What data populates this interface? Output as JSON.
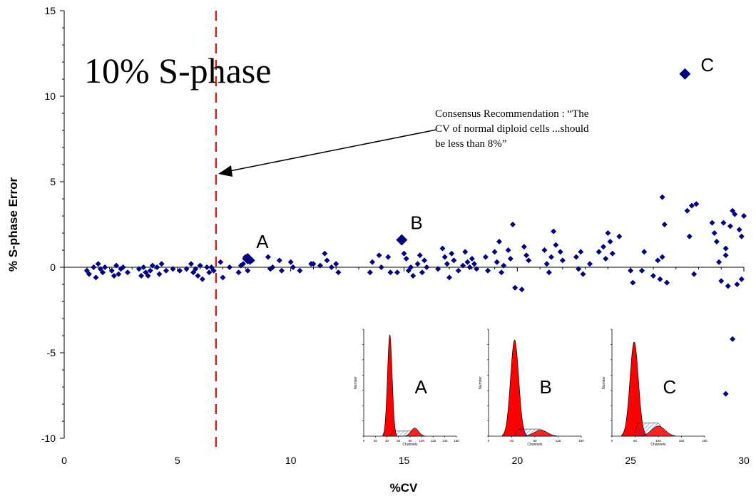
{
  "chart_data": {
    "type": "scatter",
    "title": "",
    "xlabel": "%CV",
    "ylabel": "% S-phase Error",
    "xlim": [
      0,
      30
    ],
    "ylim": [
      -10,
      15
    ],
    "x_ticks": [
      "0",
      "5",
      "10",
      "15",
      "20",
      "25",
      "30"
    ],
    "y_ticks": [
      "15",
      "10",
      "5",
      "0",
      "-5",
      "-10"
    ],
    "grid": false,
    "marker_color": "#000080",
    "threshold_color": "#e02020",
    "threshold_x": 6.7,
    "points": [
      {
        "x": 1.0,
        "y": -0.2
      },
      {
        "x": 1.1,
        "y": -0.4
      },
      {
        "x": 1.3,
        "y": 0.0
      },
      {
        "x": 1.4,
        "y": -0.6
      },
      {
        "x": 1.5,
        "y": 0.2
      },
      {
        "x": 1.6,
        "y": -0.1
      },
      {
        "x": 1.7,
        "y": -0.3
      },
      {
        "x": 1.8,
        "y": 0.0
      },
      {
        "x": 2.1,
        "y": -0.2
      },
      {
        "x": 2.2,
        "y": -0.5
      },
      {
        "x": 2.3,
        "y": 0.1
      },
      {
        "x": 2.4,
        "y": -0.4
      },
      {
        "x": 2.5,
        "y": -0.1
      },
      {
        "x": 2.6,
        "y": 0.0
      },
      {
        "x": 2.8,
        "y": -0.3
      },
      {
        "x": 3.3,
        "y": -0.1
      },
      {
        "x": 3.4,
        "y": -0.5
      },
      {
        "x": 3.5,
        "y": 0.0
      },
      {
        "x": 3.6,
        "y": -0.3
      },
      {
        "x": 3.7,
        "y": -0.5
      },
      {
        "x": 3.8,
        "y": -0.2
      },
      {
        "x": 3.9,
        "y": 0.1
      },
      {
        "x": 4.1,
        "y": 0.0
      },
      {
        "x": 4.2,
        "y": -0.4
      },
      {
        "x": 4.3,
        "y": 0.2
      },
      {
        "x": 4.5,
        "y": -0.2
      },
      {
        "x": 4.8,
        "y": -0.1
      },
      {
        "x": 5.1,
        "y": -0.2
      },
      {
        "x": 5.4,
        "y": -0.1
      },
      {
        "x": 5.6,
        "y": 0.2
      },
      {
        "x": 5.7,
        "y": -0.3
      },
      {
        "x": 5.8,
        "y": -0.1
      },
      {
        "x": 5.9,
        "y": -0.5
      },
      {
        "x": 6.0,
        "y": 0.1
      },
      {
        "x": 6.1,
        "y": -0.7
      },
      {
        "x": 6.3,
        "y": 0.0
      },
      {
        "x": 6.4,
        "y": -0.3
      },
      {
        "x": 6.5,
        "y": 0.0
      },
      {
        "x": 6.6,
        "y": -0.2
      },
      {
        "x": 6.9,
        "y": 0.3
      },
      {
        "x": 7.0,
        "y": -0.6
      },
      {
        "x": 7.3,
        "y": 0.0
      },
      {
        "x": 7.7,
        "y": -0.3
      },
      {
        "x": 7.8,
        "y": 0.1
      },
      {
        "x": 7.9,
        "y": 0.2
      },
      {
        "x": 8.0,
        "y": 0.6
      },
      {
        "x": 8.1,
        "y": -0.2
      },
      {
        "x": 8.2,
        "y": 0.3
      },
      {
        "x": 8.3,
        "y": 0.4
      },
      {
        "x": 9.0,
        "y": 0.6
      },
      {
        "x": 9.1,
        "y": -0.1
      },
      {
        "x": 9.2,
        "y": 0.0
      },
      {
        "x": 9.5,
        "y": 0.4
      },
      {
        "x": 9.6,
        "y": -0.2
      },
      {
        "x": 10.0,
        "y": 0.3
      },
      {
        "x": 10.1,
        "y": 0.0
      },
      {
        "x": 10.4,
        "y": -0.2
      },
      {
        "x": 10.9,
        "y": 0.2
      },
      {
        "x": 11.0,
        "y": 0.2
      },
      {
        "x": 11.3,
        "y": 0.1
      },
      {
        "x": 11.5,
        "y": 0.8
      },
      {
        "x": 11.6,
        "y": 0.4
      },
      {
        "x": 11.8,
        "y": 0.0
      },
      {
        "x": 12.0,
        "y": 0.2
      },
      {
        "x": 12.1,
        "y": -0.3
      },
      {
        "x": 13.5,
        "y": -0.3
      },
      {
        "x": 13.6,
        "y": 0.3
      },
      {
        "x": 13.9,
        "y": 0.7
      },
      {
        "x": 14.0,
        "y": 0.0
      },
      {
        "x": 14.3,
        "y": 0.6
      },
      {
        "x": 14.4,
        "y": -0.3
      },
      {
        "x": 14.7,
        "y": -0.3
      },
      {
        "x": 15.0,
        "y": 0.8
      },
      {
        "x": 15.1,
        "y": 0.5
      },
      {
        "x": 15.2,
        "y": -0.2
      },
      {
        "x": 15.3,
        "y": 0.0
      },
      {
        "x": 15.4,
        "y": -0.5
      },
      {
        "x": 15.6,
        "y": 0.2
      },
      {
        "x": 15.7,
        "y": 0.7
      },
      {
        "x": 15.8,
        "y": -0.3
      },
      {
        "x": 15.9,
        "y": 0.4
      },
      {
        "x": 16.0,
        "y": 0.0
      },
      {
        "x": 16.5,
        "y": -0.1
      },
      {
        "x": 16.7,
        "y": 1.1
      },
      {
        "x": 16.8,
        "y": 0.6
      },
      {
        "x": 16.9,
        "y": 0.2
      },
      {
        "x": 17.0,
        "y": -0.6
      },
      {
        "x": 17.1,
        "y": 0.8
      },
      {
        "x": 17.2,
        "y": 0.4
      },
      {
        "x": 17.4,
        "y": -0.2
      },
      {
        "x": 17.6,
        "y": 0.1
      },
      {
        "x": 17.7,
        "y": 0.9
      },
      {
        "x": 17.8,
        "y": 0.3
      },
      {
        "x": 17.9,
        "y": 0.0
      },
      {
        "x": 18.0,
        "y": 0.5
      },
      {
        "x": 18.1,
        "y": 0.2
      },
      {
        "x": 18.2,
        "y": -0.1
      },
      {
        "x": 18.6,
        "y": 0.6
      },
      {
        "x": 18.7,
        "y": -0.2
      },
      {
        "x": 19.0,
        "y": 0.9
      },
      {
        "x": 19.1,
        "y": 0.3
      },
      {
        "x": 19.2,
        "y": 1.5
      },
      {
        "x": 19.3,
        "y": -0.3
      },
      {
        "x": 19.4,
        "y": 0.1
      },
      {
        "x": 19.6,
        "y": 1.0
      },
      {
        "x": 19.7,
        "y": 0.5
      },
      {
        "x": 19.8,
        "y": 2.5
      },
      {
        "x": 19.9,
        "y": -1.2
      },
      {
        "x": 20.2,
        "y": -1.3
      },
      {
        "x": 20.3,
        "y": 1.2
      },
      {
        "x": 20.4,
        "y": 0.7
      },
      {
        "x": 20.5,
        "y": 0.4
      },
      {
        "x": 21.2,
        "y": 1.0
      },
      {
        "x": 21.3,
        "y": 0.2
      },
      {
        "x": 21.4,
        "y": -0.3
      },
      {
        "x": 21.5,
        "y": 0.6
      },
      {
        "x": 21.6,
        "y": 2.1
      },
      {
        "x": 21.7,
        "y": 1.3
      },
      {
        "x": 21.9,
        "y": 0.9
      },
      {
        "x": 22.0,
        "y": 0.4
      },
      {
        "x": 22.6,
        "y": 0.6
      },
      {
        "x": 22.7,
        "y": -0.1
      },
      {
        "x": 22.8,
        "y": 0.9
      },
      {
        "x": 22.9,
        "y": -0.4
      },
      {
        "x": 23.2,
        "y": 0.2
      },
      {
        "x": 23.6,
        "y": 0.9
      },
      {
        "x": 23.8,
        "y": 1.2
      },
      {
        "x": 23.9,
        "y": 0.5
      },
      {
        "x": 24.0,
        "y": 2.0
      },
      {
        "x": 24.1,
        "y": 1.5
      },
      {
        "x": 24.2,
        "y": 0.8
      },
      {
        "x": 24.5,
        "y": 1.8
      },
      {
        "x": 25.0,
        "y": -0.2
      },
      {
        "x": 25.1,
        "y": -0.9
      },
      {
        "x": 25.5,
        "y": -0.2
      },
      {
        "x": 25.6,
        "y": 0.9
      },
      {
        "x": 26.0,
        "y": -0.5
      },
      {
        "x": 26.2,
        "y": 0.4
      },
      {
        "x": 26.3,
        "y": -0.7
      },
      {
        "x": 26.4,
        "y": 0.6
      },
      {
        "x": 26.5,
        "y": 2.5
      },
      {
        "x": 26.6,
        "y": -0.9
      },
      {
        "x": 26.4,
        "y": 4.1
      },
      {
        "x": 27.5,
        "y": 3.3
      },
      {
        "x": 27.6,
        "y": 1.8
      },
      {
        "x": 27.7,
        "y": 3.6
      },
      {
        "x": 27.8,
        "y": -0.4
      },
      {
        "x": 27.9,
        "y": 3.7
      },
      {
        "x": 28.6,
        "y": 2.6
      },
      {
        "x": 28.7,
        "y": 2.0
      },
      {
        "x": 28.8,
        "y": 1.5
      },
      {
        "x": 28.9,
        "y": 0.3
      },
      {
        "x": 29.0,
        "y": -0.8
      },
      {
        "x": 29.1,
        "y": 2.6
      },
      {
        "x": 29.2,
        "y": 1.1
      },
      {
        "x": 29.3,
        "y": -1.1
      },
      {
        "x": 29.4,
        "y": 2.4
      },
      {
        "x": 29.5,
        "y": 3.3
      },
      {
        "x": 29.6,
        "y": 3.1
      },
      {
        "x": 29.7,
        "y": -1.0
      },
      {
        "x": 29.8,
        "y": 2.2
      },
      {
        "x": 29.9,
        "y": 1.8
      },
      {
        "x": 30.0,
        "y": 3.0
      },
      {
        "x": 29.9,
        "y": -0.7
      },
      {
        "x": 29.2,
        "y": 0.7
      },
      {
        "x": 29.5,
        "y": -4.2
      },
      {
        "x": 29.2,
        "y": -7.4
      }
    ],
    "highlighted_points": [
      {
        "label": "A",
        "x": 8.1,
        "y": 0.5
      },
      {
        "label": "B",
        "x": 14.9,
        "y": 1.6
      },
      {
        "label": "C",
        "x": 27.4,
        "y": 11.3
      }
    ],
    "annotations": {
      "big_label": "10% S-phase",
      "consensus": "Consensus Recommendation : “The CV of normal diploid cells ...should be less than 8%”"
    },
    "insets": [
      {
        "label": "A",
        "ylabel": "Number",
        "xlabel": "Channels",
        "x_ticks": [
          "0",
          "20",
          "40",
          "60",
          "80",
          "100",
          "120",
          "140",
          "160"
        ],
        "peak_channel": 45,
        "peak_height": 1.0,
        "peak_width": 4,
        "sphase": 0.05,
        "g2_channel": 88,
        "g2_height": 0.08
      },
      {
        "label": "B",
        "ylabel": "Number",
        "xlabel": "Channels",
        "x_ticks": [
          "0",
          "40",
          "80",
          "120",
          "160"
        ],
        "peak_channel": 45,
        "peak_height": 0.95,
        "peak_width": 7,
        "sphase": 0.07,
        "g2_channel": 90,
        "g2_height": 0.06
      },
      {
        "label": "C",
        "ylabel": "Number",
        "xlabel": "Channels",
        "x_ticks": [
          "0",
          "50",
          "100",
          "150",
          "200"
        ],
        "peak_channel": 48,
        "peak_height": 0.93,
        "peak_width": 9,
        "sphase": 0.13,
        "g2_channel": 100,
        "g2_height": 0.1
      }
    ]
  }
}
